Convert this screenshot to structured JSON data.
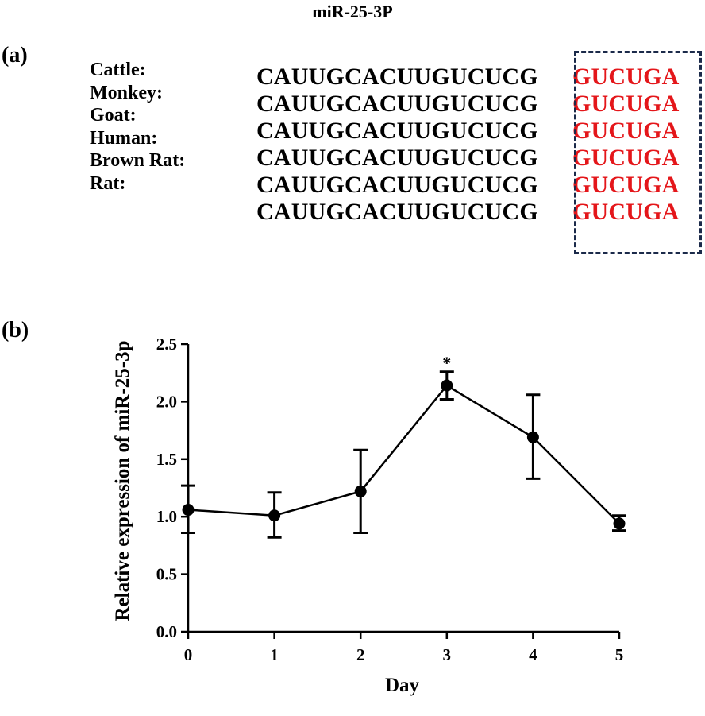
{
  "figure_title": "miR-25-3P",
  "panel_a": {
    "label": "(a)",
    "species": [
      "Cattle:",
      "Monkey:",
      "Goat:",
      "Human:",
      "Brown Rat:",
      "Rat:"
    ],
    "sequences": [
      {
        "conserved": "CAUUGCACUUGUCUCG",
        "seed": "GUCUGA"
      },
      {
        "conserved": "CAUUGCACUUGUCUCG",
        "seed": "GUCUGA"
      },
      {
        "conserved": "CAUUGCACUUGUCUCG",
        "seed": "GUCUGA"
      },
      {
        "conserved": "CAUUGCACUUGUCUCG",
        "seed": "GUCUGA"
      },
      {
        "conserved": "CAUUGCACUUGUCUCG",
        "seed": "GUCUGA"
      },
      {
        "conserved": "CAUUGCACUUGUCUCG",
        "seed": "GUCUGA"
      }
    ],
    "colors": {
      "seed_text": "#e4161a",
      "box_border": "#1b2a4a"
    }
  },
  "panel_b": {
    "label": "(b)"
  },
  "chart_data": {
    "type": "line",
    "title": "",
    "xlabel": "Day",
    "ylabel": "Relative expression of miR-25-3p",
    "x": [
      0,
      1,
      2,
      3,
      4,
      5
    ],
    "x_ticks": [
      "0",
      "1",
      "2",
      "3",
      "4",
      "5"
    ],
    "y_ticks": [
      "0.0",
      "0.5",
      "1.0",
      "1.5",
      "2.0",
      "2.5"
    ],
    "ylim": [
      0,
      2.5
    ],
    "xlim": [
      0,
      5
    ],
    "series": [
      {
        "values": [
          1.06,
          1.01,
          1.22,
          2.14,
          1.69,
          0.94
        ],
        "error_upper": [
          1.27,
          1.21,
          1.58,
          2.26,
          2.06,
          1.01
        ],
        "error_lower": [
          0.86,
          0.82,
          0.86,
          2.02,
          1.33,
          0.88
        ]
      }
    ],
    "annotations": [
      {
        "x": 3,
        "text": "*"
      }
    ],
    "grid": false,
    "line_color": "#000000"
  }
}
